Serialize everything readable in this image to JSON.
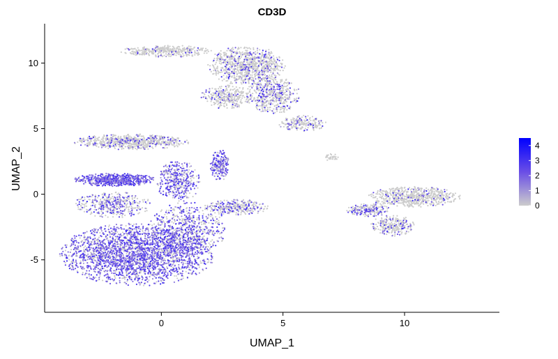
{
  "chart_data": {
    "type": "scatter",
    "title": "CD3D",
    "xlabel": "UMAP_1",
    "ylabel": "UMAP_2",
    "xlim": [
      -4.8,
      13.9
    ],
    "ylim": [
      -9.0,
      13.0
    ],
    "xticks": [
      0,
      5,
      10
    ],
    "yticks": [
      -5,
      0,
      5,
      10
    ],
    "xtick_labels": [
      "0",
      "5",
      "10"
    ],
    "ytick_labels": [
      "-5",
      "0",
      "5",
      "10"
    ],
    "grid": false,
    "legend": {
      "placement": "right",
      "type": "colorbar",
      "min": 0,
      "max": 4.5,
      "ticks": [
        0,
        1,
        2,
        3,
        4
      ],
      "tick_labels": [
        "0",
        "1",
        "2",
        "3",
        "4"
      ]
    },
    "colors": {
      "low": "#cccccc",
      "high": "#0000ff",
      "mid": "#6a4ee6"
    },
    "clusters": [
      {
        "cx": -1.2,
        "cy": 4.0,
        "rx": 2.4,
        "ry": 0.6,
        "n": 700,
        "expr": 0.15
      },
      {
        "cx": -1.9,
        "cy": 1.1,
        "rx": 1.7,
        "ry": 0.5,
        "n": 650,
        "expr": 0.85
      },
      {
        "cx": -2.0,
        "cy": -0.8,
        "rx": 1.6,
        "ry": 1.0,
        "n": 400,
        "expr": 0.45
      },
      {
        "cx": -1.0,
        "cy": -4.6,
        "rx": 3.2,
        "ry": 2.4,
        "n": 2600,
        "expr": 0.72
      },
      {
        "cx": 1.1,
        "cy": -2.6,
        "rx": 1.6,
        "ry": 2.0,
        "n": 600,
        "expr": 0.55
      },
      {
        "cx": 0.7,
        "cy": 1.0,
        "rx": 0.9,
        "ry": 1.6,
        "n": 400,
        "expr": 0.6
      },
      {
        "cx": 3.1,
        "cy": -1.0,
        "rx": 1.3,
        "ry": 0.6,
        "n": 300,
        "expr": 0.3
      },
      {
        "cx": 2.4,
        "cy": 2.2,
        "rx": 0.4,
        "ry": 1.2,
        "n": 200,
        "expr": 0.7
      },
      {
        "cx": 0.2,
        "cy": 10.9,
        "rx": 1.9,
        "ry": 0.45,
        "n": 350,
        "expr": 0.08
      },
      {
        "cx": 3.5,
        "cy": 9.8,
        "rx": 1.6,
        "ry": 1.5,
        "n": 900,
        "expr": 0.18
      },
      {
        "cx": 4.6,
        "cy": 7.6,
        "rx": 1.1,
        "ry": 1.5,
        "n": 500,
        "expr": 0.22
      },
      {
        "cx": 2.7,
        "cy": 7.4,
        "rx": 1.1,
        "ry": 0.9,
        "n": 300,
        "expr": 0.15
      },
      {
        "cx": 5.8,
        "cy": 5.4,
        "rx": 1.0,
        "ry": 0.6,
        "n": 200,
        "expr": 0.2
      },
      {
        "cx": 7.0,
        "cy": 2.8,
        "rx": 0.3,
        "ry": 0.3,
        "n": 30,
        "expr": 0.1
      },
      {
        "cx": 10.4,
        "cy": -0.2,
        "rx": 1.9,
        "ry": 0.8,
        "n": 650,
        "expr": 0.1
      },
      {
        "cx": 8.5,
        "cy": -1.2,
        "rx": 0.9,
        "ry": 0.5,
        "n": 200,
        "expr": 0.35
      },
      {
        "cx": 9.5,
        "cy": -2.4,
        "rx": 0.9,
        "ry": 0.8,
        "n": 250,
        "expr": 0.2
      }
    ]
  }
}
